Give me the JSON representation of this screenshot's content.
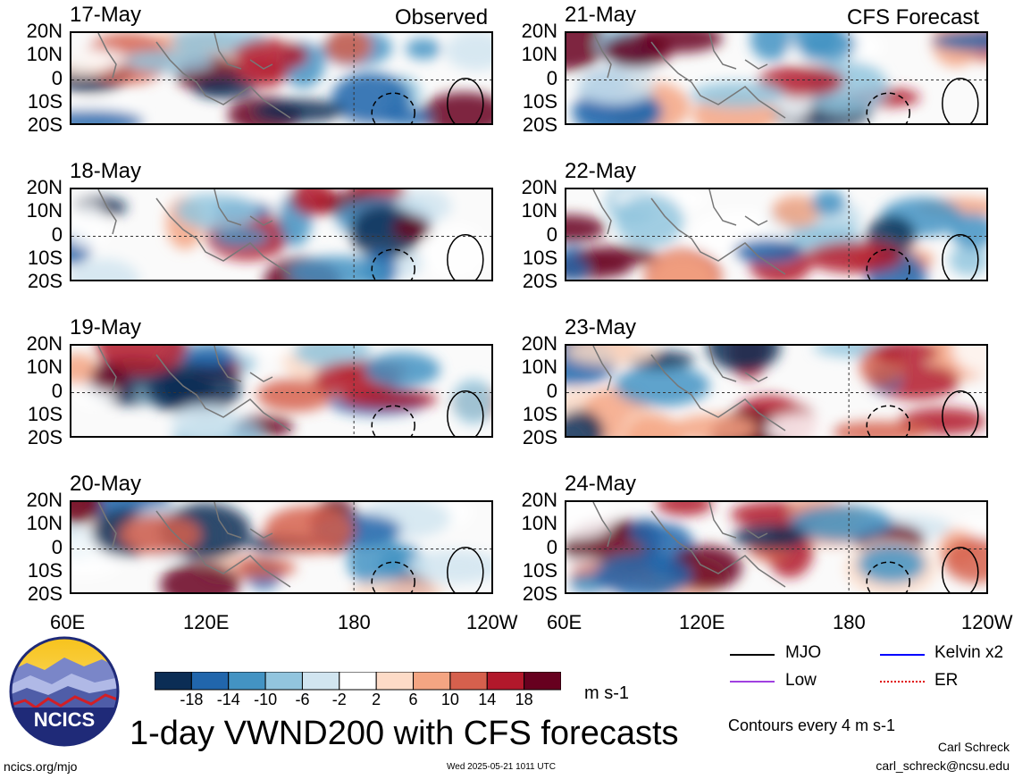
{
  "headers": {
    "observed": "Observed",
    "forecast": "CFS Forecast"
  },
  "panels_left": [
    {
      "date": "17-May"
    },
    {
      "date": "18-May"
    },
    {
      "date": "19-May"
    },
    {
      "date": "20-May"
    }
  ],
  "panels_right": [
    {
      "date": "21-May"
    },
    {
      "date": "22-May"
    },
    {
      "date": "23-May"
    },
    {
      "date": "24-May"
    }
  ],
  "lat_labels": [
    "20N",
    "10N",
    "0",
    "10S",
    "20S"
  ],
  "lon_labels": [
    "60E",
    "120E",
    "180",
    "120W"
  ],
  "colorbar": {
    "labels": [
      "-18",
      "-14",
      "-10",
      "-6",
      "-2",
      "2",
      "6",
      "10",
      "14",
      "18"
    ],
    "units": "m s-1",
    "colors": [
      "#0b2d55",
      "#2166ac",
      "#4393c3",
      "#92c5de",
      "#d1e5f0",
      "#ffffff",
      "#fddbc7",
      "#f4a582",
      "#d6604d",
      "#b2182b",
      "#67001f"
    ]
  },
  "legend": {
    "mjo": "MJO",
    "kelvin": "Kelvin x2",
    "low": "Low",
    "er": "ER",
    "contours_note": "Contours every 4 m s-1"
  },
  "title": "1-day VWND200 with CFS forecasts",
  "logo_text": "NCICS",
  "footer": {
    "left": "ncics.org/mjo",
    "center": "Wed 2025-05-21 1011 UTC",
    "author": "Carl Schreck",
    "email": "carl_schreck@ncsu.edu"
  }
}
